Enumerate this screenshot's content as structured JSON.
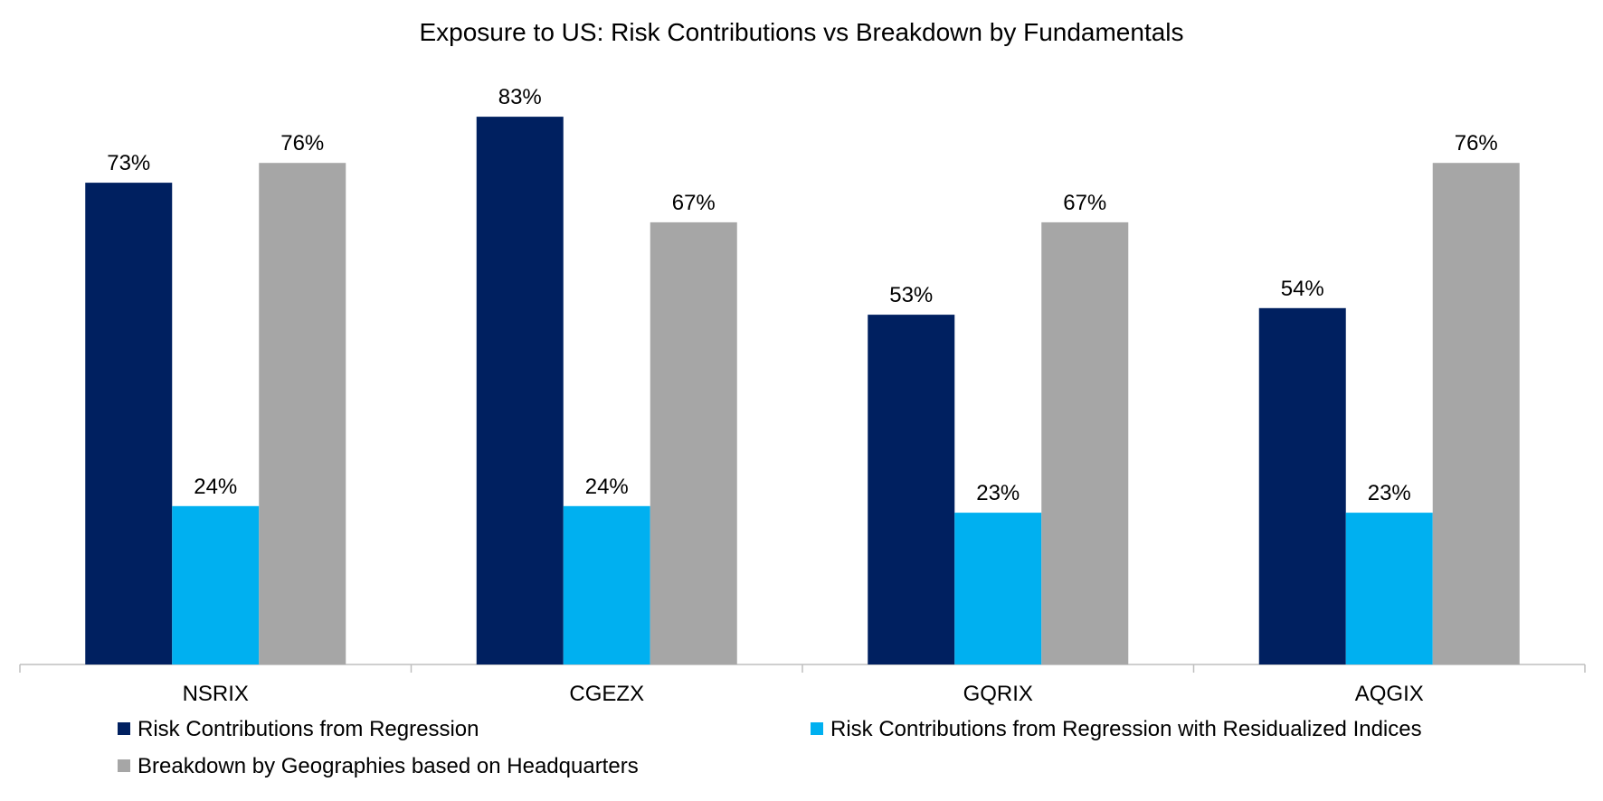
{
  "chart_data": {
    "type": "bar",
    "title": "Exposure to US: Risk Contributions vs Breakdown by Fundamentals",
    "categories": [
      "NSRIX",
      "CGEZX",
      "GQRIX",
      "AQGIX"
    ],
    "series": [
      {
        "name": "Risk Contributions from Regression",
        "color": "#002060",
        "values": [
          73,
          83,
          53,
          54
        ],
        "labels": [
          "73%",
          "83%",
          "53%",
          "54%"
        ]
      },
      {
        "name": "Risk Contributions from Regression with Residualized Indices",
        "color": "#00B0F0",
        "values": [
          24,
          24,
          23,
          23
        ],
        "labels": [
          "24%",
          "24%",
          "23%",
          "23%"
        ]
      },
      {
        "name": "Breakdown by Geographies based on Headquarters",
        "color": "#A6A6A6",
        "values": [
          76,
          67,
          67,
          76
        ],
        "labels": [
          "76%",
          "67%",
          "67%",
          "76%"
        ]
      }
    ],
    "ylim": [
      0,
      100
    ],
    "unit": "%",
    "grid": false,
    "legend_position": "bottom",
    "xlabel": "",
    "ylabel": ""
  }
}
